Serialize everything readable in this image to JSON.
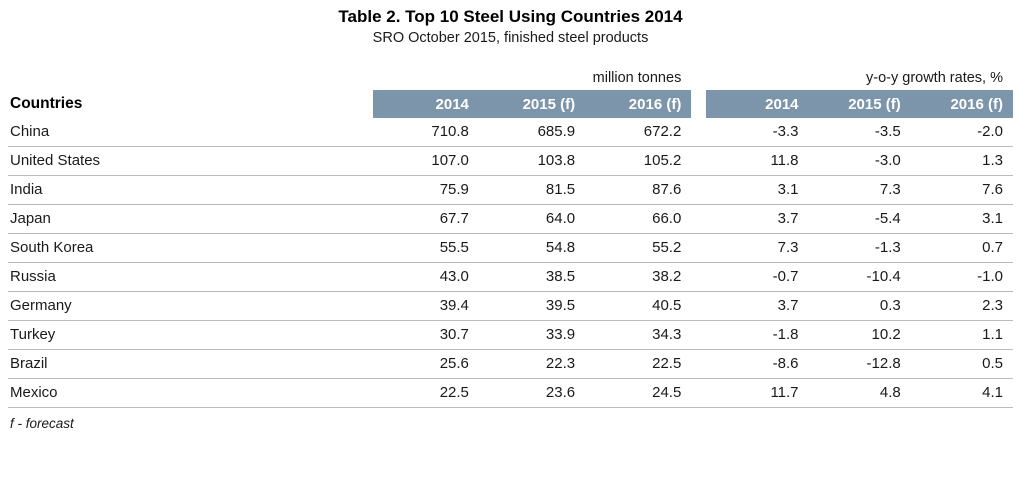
{
  "title": "Table 2. Top 10 Steel Using Countries 2014",
  "subtitle": "SRO October 2015, finished steel products",
  "footnote": "f - forecast",
  "colors": {
    "header_band": "#7c95ab",
    "header_text": "#ffffff",
    "row_separator": "#b9bcbe"
  },
  "chart_data": {
    "type": "table",
    "title": "Table 2. Top 10 Steel Using Countries 2014",
    "subtitle": "SRO October 2015, finished steel products",
    "row_header": "Countries",
    "group_headers": [
      "million tonnes",
      "y-o-y growth rates, %"
    ],
    "column_headers": [
      "2014",
      "2015 (f)",
      "2016 (f)",
      "2014",
      "2015 (f)",
      "2016 (f)"
    ],
    "rows": [
      {
        "country": "China",
        "tonnes": [
          "710.8",
          "685.9",
          "672.2"
        ],
        "growth": [
          "-3.3",
          "-3.5",
          "-2.0"
        ]
      },
      {
        "country": "United States",
        "tonnes": [
          "107.0",
          "103.8",
          "105.2"
        ],
        "growth": [
          "11.8",
          "-3.0",
          "1.3"
        ]
      },
      {
        "country": "India",
        "tonnes": [
          "75.9",
          "81.5",
          "87.6"
        ],
        "growth": [
          "3.1",
          "7.3",
          "7.6"
        ]
      },
      {
        "country": "Japan",
        "tonnes": [
          "67.7",
          "64.0",
          "66.0"
        ],
        "growth": [
          "3.7",
          "-5.4",
          "3.1"
        ]
      },
      {
        "country": "South Korea",
        "tonnes": [
          "55.5",
          "54.8",
          "55.2"
        ],
        "growth": [
          "7.3",
          "-1.3",
          "0.7"
        ]
      },
      {
        "country": "Russia",
        "tonnes": [
          "43.0",
          "38.5",
          "38.2"
        ],
        "growth": [
          "-0.7",
          "-10.4",
          "-1.0"
        ]
      },
      {
        "country": "Germany",
        "tonnes": [
          "39.4",
          "39.5",
          "40.5"
        ],
        "growth": [
          "3.7",
          "0.3",
          "2.3"
        ]
      },
      {
        "country": "Turkey",
        "tonnes": [
          "30.7",
          "33.9",
          "34.3"
        ],
        "growth": [
          "-1.8",
          "10.2",
          "1.1"
        ]
      },
      {
        "country": "Brazil",
        "tonnes": [
          "25.6",
          "22.3",
          "22.5"
        ],
        "growth": [
          "-8.6",
          "-12.8",
          "0.5"
        ]
      },
      {
        "country": "Mexico",
        "tonnes": [
          "22.5",
          "23.6",
          "24.5"
        ],
        "growth": [
          "11.7",
          "4.8",
          "4.1"
        ]
      }
    ]
  }
}
